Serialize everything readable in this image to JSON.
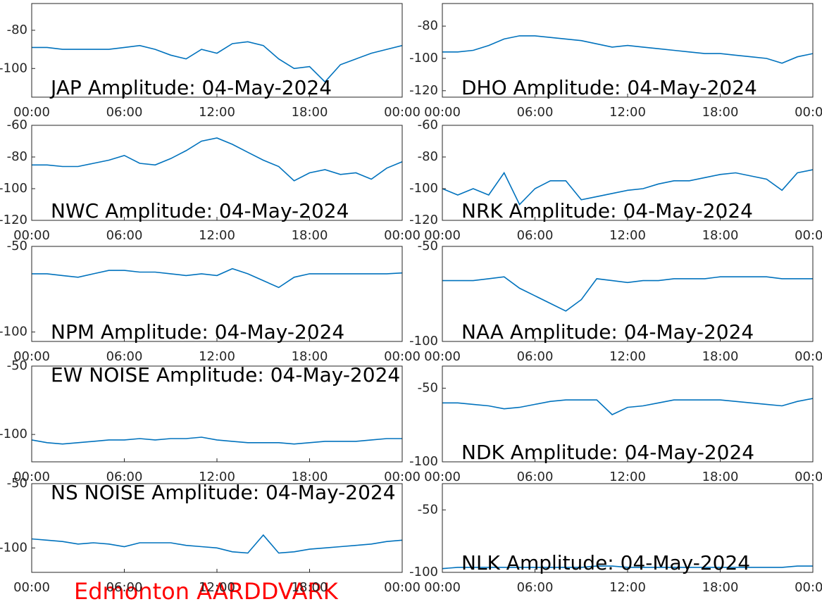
{
  "caption": "Edmonton AARDDVARK",
  "chart_data": [
    {
      "type": "line",
      "title": "JAP Amplitude: 04-May-2024",
      "title_position": "bottom",
      "color": "#0072bd",
      "x": [
        0,
        1,
        2,
        3,
        4,
        5,
        6,
        7,
        8,
        9,
        10,
        11,
        12,
        13,
        14,
        15,
        16,
        17,
        18,
        19,
        20,
        21,
        22,
        23,
        24
      ],
      "values": [
        -89,
        -89,
        -90,
        -90,
        -90,
        -90,
        -89,
        -88,
        -90,
        -93,
        -95,
        -90,
        -92,
        -87,
        -86,
        -88,
        -95,
        -100,
        -99,
        -107,
        -98,
        -95,
        -92,
        -90,
        -88
      ],
      "xlim": [
        0,
        24
      ],
      "xticks": [
        {
          "value": 0,
          "label": "00:00"
        },
        {
          "value": 6,
          "label": "06:00"
        },
        {
          "value": 12,
          "label": "12:00"
        },
        {
          "value": 18,
          "label": "18:00"
        },
        {
          "value": 24,
          "label": "00:00"
        }
      ],
      "ylim": [
        -115,
        -66
      ],
      "yticks": [
        -80,
        -100
      ]
    },
    {
      "type": "line",
      "title": "DHO Amplitude: 04-May-2024",
      "title_position": "bottom",
      "color": "#0072bd",
      "x": [
        0,
        1,
        2,
        3,
        4,
        5,
        6,
        7,
        8,
        9,
        10,
        11,
        12,
        13,
        14,
        15,
        16,
        17,
        18,
        19,
        20,
        21,
        22,
        23,
        24
      ],
      "values": [
        -96,
        -96,
        -95,
        -92,
        -88,
        -86,
        -86,
        -87,
        -88,
        -89,
        -91,
        -93,
        -92,
        -93,
        -94,
        -95,
        -96,
        -97,
        -97,
        -98,
        -99,
        -100,
        -103,
        -99,
        -97
      ],
      "xlim": [
        0,
        24
      ],
      "xticks": [
        {
          "value": 0,
          "label": "00:00"
        },
        {
          "value": 6,
          "label": "06:00"
        },
        {
          "value": 12,
          "label": "12:00"
        },
        {
          "value": 18,
          "label": "18:00"
        },
        {
          "value": 24,
          "label": "00:00"
        }
      ],
      "ylim": [
        -124,
        -66
      ],
      "yticks": [
        -80,
        -100,
        -120
      ]
    },
    {
      "type": "line",
      "title": "NWC Amplitude: 04-May-2024",
      "title_position": "bottom",
      "color": "#0072bd",
      "x": [
        0,
        1,
        2,
        3,
        4,
        5,
        6,
        7,
        8,
        9,
        10,
        11,
        12,
        13,
        14,
        15,
        16,
        17,
        18,
        19,
        20,
        21,
        22,
        23,
        24
      ],
      "values": [
        -85,
        -85,
        -86,
        -86,
        -84,
        -82,
        -79,
        -84,
        -85,
        -81,
        -76,
        -70,
        -68,
        -72,
        -77,
        -82,
        -86,
        -95,
        -90,
        -88,
        -91,
        -90,
        -94,
        -87,
        -83
      ],
      "xlim": [
        0,
        24
      ],
      "xticks": [
        {
          "value": 0,
          "label": "00:00"
        },
        {
          "value": 6,
          "label": "06:00"
        },
        {
          "value": 12,
          "label": "12:00"
        },
        {
          "value": 18,
          "label": "18:00"
        },
        {
          "value": 24,
          "label": "00:00"
        }
      ],
      "ylim": [
        -120,
        -60
      ],
      "yticks": [
        -60,
        -80,
        -100,
        -120
      ]
    },
    {
      "type": "line",
      "title": "NRK Amplitude: 04-May-2024",
      "title_position": "bottom",
      "color": "#0072bd",
      "x": [
        0,
        1,
        2,
        3,
        4,
        5,
        6,
        7,
        8,
        9,
        10,
        11,
        12,
        13,
        14,
        15,
        16,
        17,
        18,
        19,
        20,
        21,
        22,
        23,
        24
      ],
      "values": [
        -100,
        -104,
        -100,
        -104,
        -90,
        -110,
        -100,
        -95,
        -95,
        -107,
        -105,
        -103,
        -101,
        -100,
        -97,
        -95,
        -95,
        -93,
        -91,
        -90,
        -92,
        -94,
        -101,
        -90,
        -88
      ],
      "xlim": [
        0,
        24
      ],
      "xticks": [
        {
          "value": 0,
          "label": "00:00"
        },
        {
          "value": 6,
          "label": "06:00"
        },
        {
          "value": 12,
          "label": "12:00"
        },
        {
          "value": 18,
          "label": "18:00"
        },
        {
          "value": 24,
          "label": "00:00"
        }
      ],
      "ylim": [
        -120,
        -60
      ],
      "yticks": [
        -60,
        -80,
        -100,
        -120
      ]
    },
    {
      "type": "line",
      "title": "NPM Amplitude: 04-May-2024",
      "title_position": "bottom",
      "color": "#0072bd",
      "x": [
        0,
        1,
        2,
        3,
        4,
        5,
        6,
        7,
        8,
        9,
        10,
        11,
        12,
        13,
        14,
        15,
        16,
        17,
        18,
        19,
        20,
        21,
        22,
        23,
        24
      ],
      "values": [
        -66,
        -66,
        -67,
        -68,
        -66,
        -64,
        -64,
        -65,
        -65,
        -66,
        -67,
        -66,
        -67,
        -63,
        -66,
        -70,
        -74,
        -68,
        -66,
        -66,
        -66,
        -66,
        -66,
        -66,
        -65.5
      ],
      "xlim": [
        0,
        24
      ],
      "xticks": [
        {
          "value": 0,
          "label": "00:00"
        },
        {
          "value": 6,
          "label": "06:00"
        },
        {
          "value": 12,
          "label": "12:00"
        },
        {
          "value": 18,
          "label": "18:00"
        },
        {
          "value": 24,
          "label": "00:00"
        }
      ],
      "ylim": [
        -105.5,
        -50
      ],
      "yticks": [
        -50,
        -100
      ]
    },
    {
      "type": "line",
      "title": "NAA Amplitude: 04-May-2024",
      "title_position": "bottom",
      "color": "#0072bd",
      "x": [
        0,
        1,
        2,
        3,
        4,
        5,
        6,
        7,
        8,
        9,
        10,
        11,
        12,
        13,
        14,
        15,
        16,
        17,
        18,
        19,
        20,
        21,
        22,
        23,
        24
      ],
      "values": [
        -68,
        -68,
        -68,
        -67,
        -66,
        -72,
        -76,
        -80,
        -84,
        -78,
        -67,
        -68,
        -69,
        -68,
        -68,
        -67,
        -67,
        -67,
        -66,
        -66,
        -66,
        -66,
        -67,
        -67,
        -67
      ],
      "xlim": [
        0,
        24
      ],
      "xticks": [
        {
          "value": 0,
          "label": "00:00"
        },
        {
          "value": 6,
          "label": "06:00"
        },
        {
          "value": 12,
          "label": "12:00"
        },
        {
          "value": 18,
          "label": "18:00"
        },
        {
          "value": 24,
          "label": "00:00"
        }
      ],
      "ylim": [
        -100,
        -50
      ],
      "yticks": [
        -50,
        -100
      ]
    },
    {
      "type": "line",
      "title": "EW NOISE Amplitude: 04-May-2024",
      "title_position": "top",
      "color": "#0072bd",
      "x": [
        0,
        1,
        2,
        3,
        4,
        5,
        6,
        7,
        8,
        9,
        10,
        11,
        12,
        13,
        14,
        15,
        16,
        17,
        18,
        19,
        20,
        21,
        22,
        23,
        24
      ],
      "values": [
        -104,
        -106,
        -107,
        -106,
        -105,
        -104,
        -104,
        -103,
        -104,
        -103,
        -103,
        -102,
        -104,
        -105,
        -106,
        -106,
        -106,
        -107,
        -106,
        -105,
        -105,
        -105,
        -104,
        -103,
        -103
      ],
      "xlim": [
        0,
        24
      ],
      "xticks": [
        {
          "value": 0,
          "label": "00:00"
        },
        {
          "value": 6,
          "label": "06:00"
        },
        {
          "value": 12,
          "label": "12:00"
        },
        {
          "value": 18,
          "label": "18:00"
        },
        {
          "value": 24,
          "label": "00:00"
        }
      ],
      "ylim": [
        -120,
        -50
      ],
      "yticks": [
        -50,
        -100
      ]
    },
    {
      "type": "line",
      "title": "NDK Amplitude: 04-May-2024",
      "title_position": "bottom",
      "color": "#0072bd",
      "x": [
        0,
        1,
        2,
        3,
        4,
        5,
        6,
        7,
        8,
        9,
        10,
        11,
        12,
        13,
        14,
        15,
        16,
        17,
        18,
        19,
        20,
        21,
        22,
        23,
        24
      ],
      "values": [
        -60,
        -60,
        -61,
        -62,
        -64,
        -63,
        -61,
        -59,
        -58,
        -58,
        -58,
        -68,
        -63,
        -62,
        -60,
        -58,
        -58,
        -58,
        -58,
        -59,
        -60,
        -61,
        -62,
        -59,
        -57
      ],
      "xlim": [
        0,
        24
      ],
      "xticks": [
        {
          "value": 0,
          "label": "00:00"
        },
        {
          "value": 6,
          "label": "06:00"
        },
        {
          "value": 12,
          "label": "12:00"
        },
        {
          "value": 18,
          "label": "18:00"
        },
        {
          "value": 24,
          "label": "00:00"
        }
      ],
      "ylim": [
        -100,
        -35
      ],
      "yticks": [
        -50,
        -100
      ]
    },
    {
      "type": "line",
      "title": "NS NOISE Amplitude: 04-May-2024",
      "title_position": "top",
      "color": "#0072bd",
      "x": [
        0,
        1,
        2,
        3,
        4,
        5,
        6,
        7,
        8,
        9,
        10,
        11,
        12,
        13,
        14,
        15,
        16,
        17,
        18,
        19,
        20,
        21,
        22,
        23,
        24
      ],
      "values": [
        -93,
        -94,
        -95,
        -97,
        -96,
        -97,
        -99,
        -96,
        -96,
        -96,
        -98,
        -99,
        -100,
        -103,
        -104,
        -90,
        -104,
        -103,
        -101,
        -100,
        -99,
        -98,
        -97,
        -95,
        -94
      ],
      "xlim": [
        0,
        24
      ],
      "xticks": [
        {
          "value": 0,
          "label": "00:00"
        },
        {
          "value": 6,
          "label": "06:00"
        },
        {
          "value": 12,
          "label": "12:00"
        },
        {
          "value": 18,
          "label": "18:00"
        },
        {
          "value": 24,
          "label": "00:00"
        }
      ],
      "ylim": [
        -119,
        -50
      ],
      "yticks": [
        -50,
        -100
      ]
    },
    {
      "type": "line",
      "title": "NLK Amplitude: 04-May-2024",
      "title_position": "bottom",
      "color": "#0072bd",
      "x": [
        0,
        1,
        2,
        3,
        4,
        5,
        6,
        7,
        8,
        9,
        10,
        11,
        12,
        13,
        14,
        15,
        16,
        17,
        18,
        19,
        20,
        21,
        22,
        23,
        24
      ],
      "values": [
        -97,
        -96,
        -96,
        -96,
        -96,
        -96,
        -96,
        -96,
        -96,
        -96,
        -95,
        -95,
        -96,
        -96,
        -96,
        -96,
        -96,
        -96,
        -96,
        -96,
        -96,
        -96,
        -96,
        -95,
        -95
      ],
      "xlim": [
        0,
        24
      ],
      "xticks": [
        {
          "value": 0,
          "label": "00:00"
        },
        {
          "value": 6,
          "label": "06:00"
        },
        {
          "value": 12,
          "label": "12:00"
        },
        {
          "value": 18,
          "label": "18:00"
        },
        {
          "value": 24,
          "label": "00:00"
        }
      ],
      "ylim": [
        -100,
        -29
      ],
      "yticks": [
        -50,
        -100
      ]
    }
  ]
}
